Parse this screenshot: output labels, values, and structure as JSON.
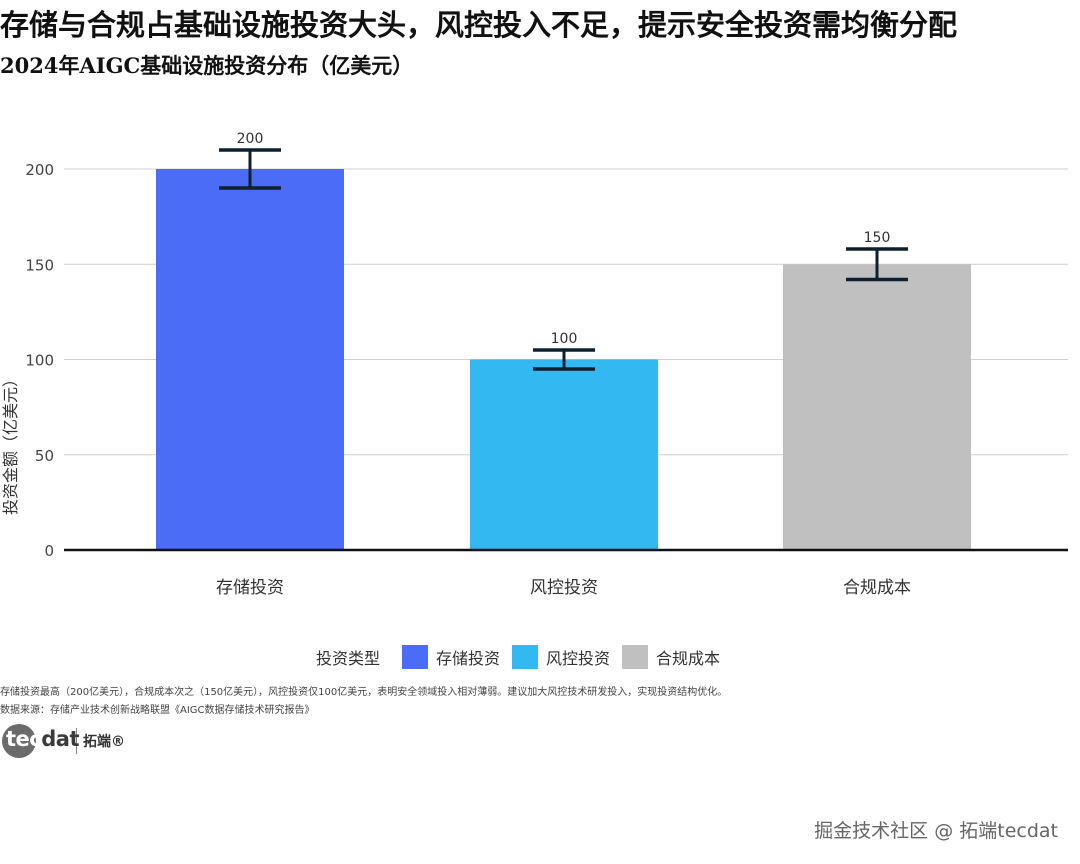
{
  "title": "存储与合规占基础设施投资大头，风控投入不足，提示安全投资需均衡分配",
  "subtitle": "2024年AIGC基础设施投资分布（亿美元）",
  "chart_data": {
    "type": "bar",
    "categories": [
      "存储投资",
      "风控投资",
      "合规成本"
    ],
    "values": [
      200,
      100,
      150
    ],
    "error_low": [
      190,
      95,
      142
    ],
    "error_high": [
      210,
      105,
      158
    ],
    "data_labels": [
      "200",
      "100",
      "150"
    ],
    "colors": [
      "#4a6cf7",
      "#33b8f2",
      "#c0c0c0"
    ],
    "ylabel": "投资金额（亿美元）",
    "xlabel": "",
    "ylim": [
      0,
      230
    ],
    "yticks": [
      0,
      50,
      100,
      150,
      200
    ],
    "grid": true,
    "legend_title": "投资类型",
    "legend_placement": "bottom"
  },
  "footnote": "存储投资最高（200亿美元），合规成本次之（150亿美元），风控投资仅100亿美元，表明安全领域投入相对薄弱。建议加大风控技术研发投入，实现投资结构优化。",
  "source": "数据来源：存储产业技术创新战略联盟《AIGC数据存储技术研究报告》",
  "logo": {
    "part1": "tec",
    "part2": "dat",
    "cn": "拓端®"
  },
  "watermark": "掘金技术社区 @ 拓端tecdat"
}
